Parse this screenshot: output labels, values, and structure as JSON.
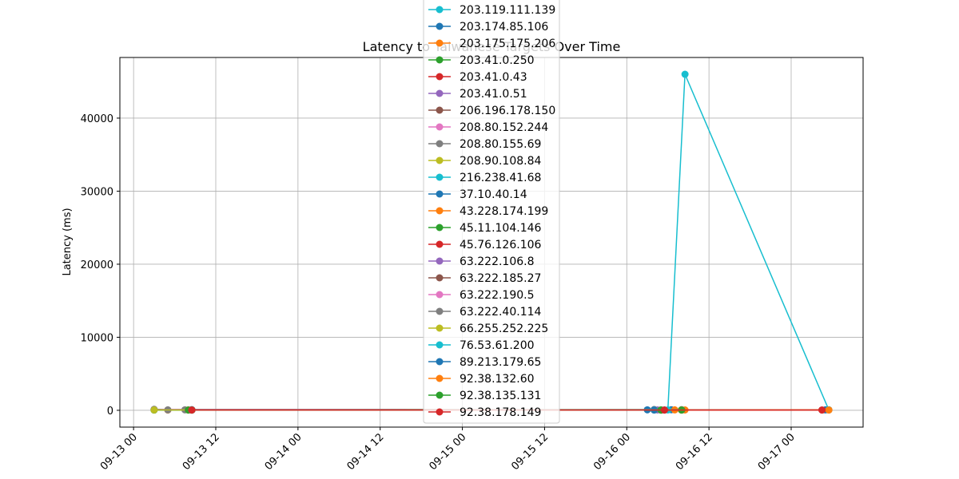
{
  "chart_data": {
    "type": "line",
    "title": "Latency to Taiwanese Targets Over Time",
    "xlabel": "",
    "ylabel": "Latency (ms)",
    "x_type": "time",
    "xlim": [
      "2023-09-12T22:00",
      "2023-09-17T10:30"
    ],
    "ylim": [
      -2300,
      48300
    ],
    "xticks": [
      {
        "value": "2023-09-13T00:00",
        "label": "09-13 00"
      },
      {
        "value": "2023-09-13T12:00",
        "label": "09-13 12"
      },
      {
        "value": "2023-09-14T00:00",
        "label": "09-14 00"
      },
      {
        "value": "2023-09-14T12:00",
        "label": "09-14 12"
      },
      {
        "value": "2023-09-15T00:00",
        "label": "09-15 00"
      },
      {
        "value": "2023-09-15T12:00",
        "label": "09-15 12"
      },
      {
        "value": "2023-09-16T00:00",
        "label": "09-16 00"
      },
      {
        "value": "2023-09-16T12:00",
        "label": "09-16 12"
      },
      {
        "value": "2023-09-17T00:00",
        "label": "09-17 00"
      }
    ],
    "yticks": [
      {
        "value": 0,
        "label": "0"
      },
      {
        "value": 10000,
        "label": "10000"
      },
      {
        "value": 20000,
        "label": "20000"
      },
      {
        "value": 30000,
        "label": "30000"
      },
      {
        "value": 40000,
        "label": "40000"
      }
    ],
    "grid": true,
    "legend_position": "upper center",
    "series": [
      {
        "name": "203.119.111.139",
        "color": "#17becf",
        "points": []
      },
      {
        "name": "203.174.85.106",
        "color": "#1f77b4",
        "points": [
          {
            "x": "2023-09-13T03:00",
            "y": 60
          },
          {
            "x": "2023-09-13T08:30",
            "y": 90
          },
          {
            "x": "2023-09-16T03:00",
            "y": 70
          },
          {
            "x": "2023-09-16T06:30",
            "y": 80
          },
          {
            "x": "2023-09-17T05:00",
            "y": 60
          }
        ]
      },
      {
        "name": "203.175.175.206",
        "color": "#ff7f0e",
        "points": [
          {
            "x": "2023-09-13T05:00",
            "y": 40
          },
          {
            "x": "2023-09-13T08:00",
            "y": 50
          },
          {
            "x": "2023-09-16T05:00",
            "y": 50
          },
          {
            "x": "2023-09-16T07:00",
            "y": 60
          },
          {
            "x": "2023-09-16T08:30",
            "y": 50
          },
          {
            "x": "2023-09-17T05:30",
            "y": 60
          }
        ]
      },
      {
        "name": "203.41.0.250",
        "color": "#2ca02c",
        "points": [
          {
            "x": "2023-09-13T03:00",
            "y": 30
          },
          {
            "x": "2023-09-13T08:00",
            "y": 40
          },
          {
            "x": "2023-09-16T05:00",
            "y": 30
          },
          {
            "x": "2023-09-16T08:00",
            "y": 40
          }
        ]
      },
      {
        "name": "203.41.0.43",
        "color": "#d62728",
        "points": [
          {
            "x": "2023-09-13T08:30",
            "y": 40
          },
          {
            "x": "2023-09-16T04:00",
            "y": 50
          },
          {
            "x": "2023-09-16T05:00",
            "y": 40
          },
          {
            "x": "2023-09-16T08:00",
            "y": 40
          },
          {
            "x": "2023-09-17T04:30",
            "y": 40
          }
        ]
      },
      {
        "name": "203.41.0.51",
        "color": "#9467bd",
        "points": [
          {
            "x": "2023-09-13T08:30",
            "y": 40
          },
          {
            "x": "2023-09-16T04:30",
            "y": 50
          }
        ]
      },
      {
        "name": "206.196.178.150",
        "color": "#8c564b",
        "points": [
          {
            "x": "2023-09-13T03:00",
            "y": 100
          },
          {
            "x": "2023-09-16T04:00",
            "y": 90
          }
        ]
      },
      {
        "name": "208.80.152.244",
        "color": "#e377c2",
        "points": [
          {
            "x": "2023-09-13T03:00",
            "y": 110
          },
          {
            "x": "2023-09-16T04:00",
            "y": 100
          }
        ]
      },
      {
        "name": "208.80.155.69",
        "color": "#7f7f7f",
        "points": [
          {
            "x": "2023-09-13T03:00",
            "y": 130
          },
          {
            "x": "2023-09-13T05:00",
            "y": 60
          },
          {
            "x": "2023-09-13T07:30",
            "y": 70
          },
          {
            "x": "2023-09-16T04:00",
            "y": 100
          },
          {
            "x": "2023-09-16T08:00",
            "y": 90
          }
        ]
      },
      {
        "name": "208.90.108.84",
        "color": "#bcbd22",
        "points": [
          {
            "x": "2023-09-13T03:00",
            "y": 50
          },
          {
            "x": "2023-09-16T04:00",
            "y": 50
          }
        ]
      },
      {
        "name": "216.238.41.68",
        "color": "#17becf",
        "points": [
          {
            "x": "2023-09-16T04:00",
            "y": 50
          },
          {
            "x": "2023-09-16T05:30",
            "y": 50
          },
          {
            "x": "2023-09-16T06:00",
            "y": 50
          },
          {
            "x": "2023-09-16T08:30",
            "y": 46000
          },
          {
            "x": "2023-09-17T05:30",
            "y": 60
          }
        ]
      },
      {
        "name": "37.10.40.14",
        "color": "#1f77b4",
        "points": [
          {
            "x": "2023-09-13T08:30",
            "y": 40
          },
          {
            "x": "2023-09-16T04:00",
            "y": 40
          }
        ]
      },
      {
        "name": "43.228.174.199",
        "color": "#ff7f0e",
        "points": [
          {
            "x": "2023-09-13T08:00",
            "y": 40
          },
          {
            "x": "2023-09-16T08:00",
            "y": 40
          }
        ]
      },
      {
        "name": "45.11.104.146",
        "color": "#2ca02c",
        "points": [
          {
            "x": "2023-09-13T08:00",
            "y": 40
          },
          {
            "x": "2023-09-16T08:00",
            "y": 40
          }
        ]
      },
      {
        "name": "45.76.126.106",
        "color": "#d62728",
        "points": [
          {
            "x": "2023-09-13T08:30",
            "y": 40
          },
          {
            "x": "2023-09-16T05:30",
            "y": 40
          }
        ]
      },
      {
        "name": "63.222.106.8",
        "color": "#9467bd",
        "points": [
          {
            "x": "2023-09-13T08:30",
            "y": 40
          },
          {
            "x": "2023-09-16T05:00",
            "y": 40
          }
        ]
      },
      {
        "name": "63.222.185.27",
        "color": "#8c564b",
        "points": [
          {
            "x": "2023-09-13T08:30",
            "y": 40
          },
          {
            "x": "2023-09-16T05:00",
            "y": 40
          }
        ]
      },
      {
        "name": "63.222.190.5",
        "color": "#e377c2",
        "points": [
          {
            "x": "2023-09-13T08:30",
            "y": 40
          },
          {
            "x": "2023-09-16T05:00",
            "y": 40
          }
        ]
      },
      {
        "name": "63.222.40.114",
        "color": "#7f7f7f",
        "points": [
          {
            "x": "2023-09-13T08:30",
            "y": 40
          },
          {
            "x": "2023-09-16T05:00",
            "y": 40
          }
        ]
      },
      {
        "name": "66.255.252.225",
        "color": "#bcbd22",
        "points": [
          {
            "x": "2023-09-13T08:30",
            "y": 40
          },
          {
            "x": "2023-09-16T05:00",
            "y": 40
          }
        ]
      },
      {
        "name": "76.53.61.200",
        "color": "#17becf",
        "points": [
          {
            "x": "2023-09-13T08:30",
            "y": 40
          },
          {
            "x": "2023-09-16T05:00",
            "y": 40
          }
        ]
      },
      {
        "name": "89.213.179.65",
        "color": "#1f77b4",
        "points": [
          {
            "x": "2023-09-13T08:30",
            "y": 40
          },
          {
            "x": "2023-09-16T05:00",
            "y": 40
          }
        ]
      },
      {
        "name": "92.38.132.60",
        "color": "#ff7f0e",
        "points": [
          {
            "x": "2023-09-13T08:30",
            "y": 40
          },
          {
            "x": "2023-09-16T05:00",
            "y": 40
          },
          {
            "x": "2023-09-17T05:30",
            "y": 40
          }
        ]
      },
      {
        "name": "92.38.135.131",
        "color": "#2ca02c",
        "points": [
          {
            "x": "2023-09-13T08:30",
            "y": 40
          },
          {
            "x": "2023-09-16T05:00",
            "y": 40
          }
        ]
      },
      {
        "name": "92.38.178.149",
        "color": "#d62728",
        "points": [
          {
            "x": "2023-09-13T08:30",
            "y": 40
          },
          {
            "x": "2023-09-16T05:30",
            "y": 40
          },
          {
            "x": "2023-09-17T04:30",
            "y": 40
          }
        ]
      }
    ]
  }
}
